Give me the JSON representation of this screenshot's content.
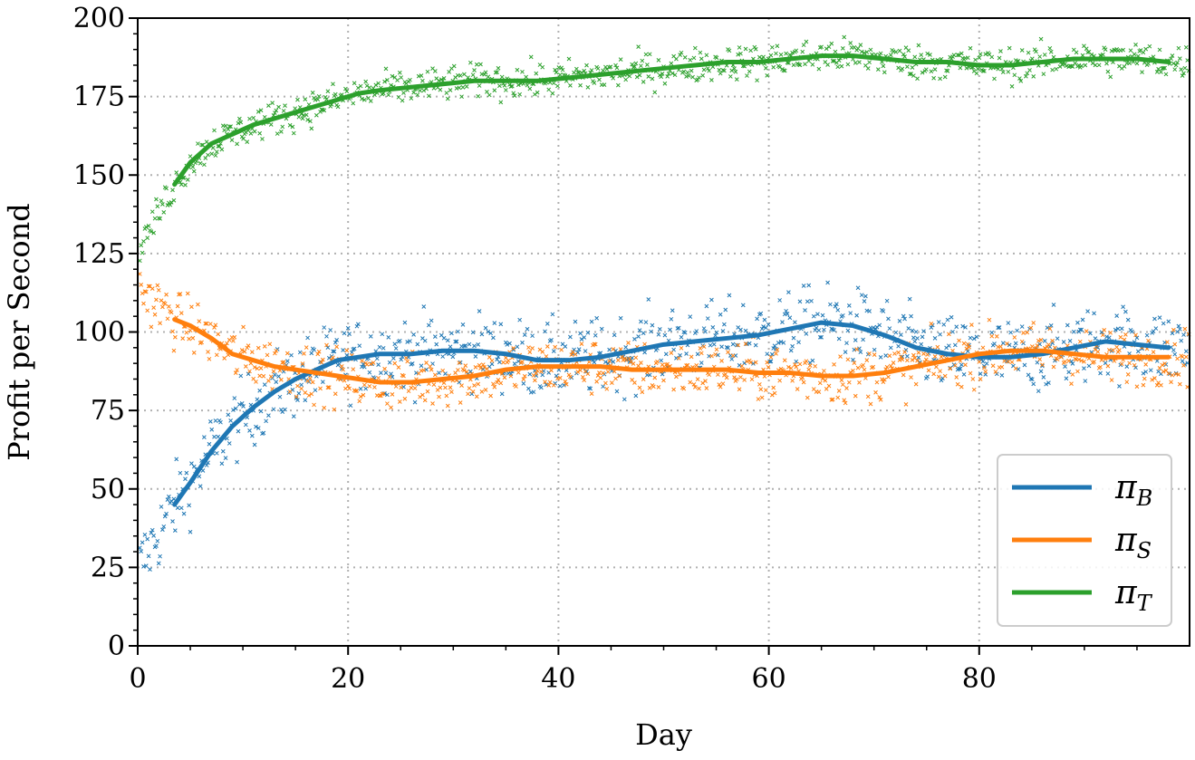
{
  "chart_data": {
    "type": "line",
    "xlabel": "Day",
    "ylabel": "Profit per Second",
    "xlim": [
      0,
      100
    ],
    "ylim": [
      0,
      200
    ],
    "x_ticks": [
      0,
      20,
      40,
      60,
      80
    ],
    "y_ticks": [
      0,
      25,
      50,
      75,
      100,
      125,
      150,
      175,
      200
    ],
    "grid": true,
    "legend_position": "lower-right",
    "series": [
      {
        "name": "π_B",
        "legend_main": "π",
        "legend_sub": "B",
        "color": "#1f77b4",
        "x": [
          3.5,
          5,
          7,
          9,
          11,
          13,
          15,
          17,
          19,
          21,
          23,
          26,
          29,
          32,
          35,
          38,
          41,
          44,
          47,
          50,
          53,
          56,
          59,
          62,
          65,
          68,
          71,
          74,
          77,
          80,
          83,
          86,
          89,
          92,
          95,
          98
        ],
        "y": [
          45,
          52,
          62,
          70,
          76,
          81,
          85,
          88,
          91,
          92,
          93,
          93,
          94,
          94,
          93,
          91,
          91,
          92,
          94,
          96,
          97,
          98,
          99,
          101,
          103,
          102,
          99,
          95,
          93,
          92,
          92,
          93,
          95,
          97,
          96,
          95
        ]
      },
      {
        "name": "π_S",
        "legend_main": "π",
        "legend_sub": "S",
        "color": "#ff7f0e",
        "x": [
          3.5,
          5,
          7,
          9,
          11,
          13,
          15,
          17,
          19,
          21,
          23,
          26,
          29,
          32,
          35,
          38,
          41,
          44,
          47,
          50,
          53,
          56,
          59,
          62,
          65,
          68,
          71,
          74,
          77,
          80,
          83,
          86,
          89,
          92,
          95,
          98
        ],
        "y": [
          104,
          102,
          98,
          93,
          91,
          89,
          88,
          87,
          86,
          85,
          84,
          84,
          85,
          86,
          88,
          89,
          89,
          89,
          88,
          88,
          88,
          88,
          87,
          87,
          86,
          86,
          87,
          89,
          91,
          93,
          94,
          94,
          93,
          92,
          92,
          92
        ]
      },
      {
        "name": "π_T",
        "legend_main": "π",
        "legend_sub": "T",
        "color": "#2ca02c",
        "x": [
          3.5,
          5,
          7,
          9,
          11,
          13,
          15,
          17,
          19,
          21,
          23,
          26,
          29,
          32,
          35,
          38,
          41,
          44,
          47,
          50,
          53,
          56,
          59,
          62,
          65,
          68,
          71,
          74,
          77,
          80,
          83,
          86,
          89,
          92,
          95,
          98
        ],
        "y": [
          147,
          154,
          160,
          163,
          166,
          168,
          170,
          172,
          174,
          176,
          177,
          178,
          179,
          180,
          180,
          180,
          181,
          182,
          183,
          184,
          185,
          186,
          186,
          187,
          188,
          188,
          187,
          186,
          186,
          185,
          185,
          186,
          187,
          187,
          187,
          186
        ]
      }
    ],
    "scatter_noise": [
      {
        "series": "π_B",
        "x_range": [
          0,
          100
        ],
        "spread": 11
      },
      {
        "series": "π_S",
        "x_range": [
          0,
          100
        ],
        "spread": 8
      },
      {
        "series": "π_T",
        "x_range": [
          0,
          100
        ],
        "spread": 5
      }
    ]
  }
}
